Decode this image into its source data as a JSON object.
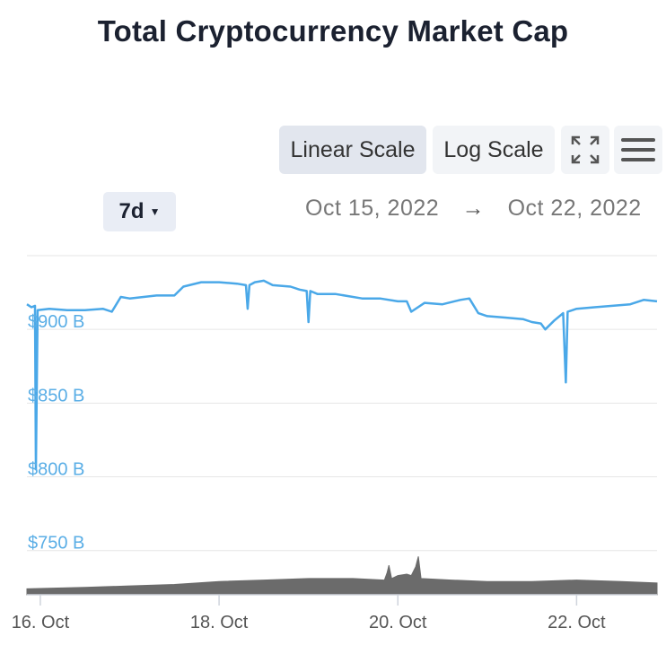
{
  "title": "Total Cryptocurrency Market Cap",
  "toolbar": {
    "linear_label": "Linear Scale",
    "log_label": "Log Scale",
    "fullscreen_icon": "fullscreen-icon",
    "menu_icon": "hamburger-menu-icon"
  },
  "range": {
    "selected": "7d",
    "from": "Oct 15, 2022",
    "arrow": "→",
    "to": "Oct 22, 2022"
  },
  "chart_data": {
    "type": "line",
    "title": "Total Cryptocurrency Market Cap",
    "scale": "linear",
    "x_unit": "day of October 2022",
    "x_range": [
      15.85,
      22.9
    ],
    "ylim": [
      720,
      950
    ],
    "y_ticks": [
      {
        "value": 900,
        "label": "$900 B"
      },
      {
        "value": 850,
        "label": "$850 B"
      },
      {
        "value": 800,
        "label": "$800 B"
      },
      {
        "value": 750,
        "label": "$750 B"
      }
    ],
    "x_ticks": [
      {
        "value": 16,
        "label": "16. Oct"
      },
      {
        "value": 18,
        "label": "18. Oct"
      },
      {
        "value": 20,
        "label": "20. Oct"
      },
      {
        "value": 22,
        "label": "22. Oct"
      }
    ],
    "grid": true,
    "colors": {
      "market_cap": "#4aa8e8",
      "volume": "#6b6b6b",
      "axis_label": "#5aaee6"
    },
    "series": [
      {
        "points": [
          [
            15.85,
            917
          ],
          [
            15.9,
            915
          ],
          [
            15.94,
            916
          ],
          [
            15.95,
            805
          ],
          [
            15.97,
            913
          ],
          [
            16.1,
            914
          ],
          [
            16.3,
            913
          ],
          [
            16.5,
            913
          ],
          [
            16.7,
            914
          ],
          [
            16.8,
            912
          ],
          [
            16.9,
            922
          ],
          [
            17.0,
            921
          ],
          [
            17.3,
            923
          ],
          [
            17.5,
            923
          ],
          [
            17.6,
            929
          ],
          [
            17.8,
            932
          ],
          [
            18.0,
            932
          ],
          [
            18.2,
            931
          ],
          [
            18.3,
            930
          ],
          [
            18.32,
            914
          ],
          [
            18.34,
            930
          ],
          [
            18.4,
            932
          ],
          [
            18.5,
            933
          ],
          [
            18.6,
            930
          ],
          [
            18.8,
            929
          ],
          [
            18.9,
            927
          ],
          [
            18.98,
            926
          ],
          [
            19.0,
            905
          ],
          [
            19.02,
            926
          ],
          [
            19.1,
            924
          ],
          [
            19.3,
            924
          ],
          [
            19.6,
            921
          ],
          [
            19.8,
            921
          ],
          [
            20.0,
            919
          ],
          [
            20.1,
            919
          ],
          [
            20.15,
            912
          ],
          [
            20.3,
            918
          ],
          [
            20.5,
            917
          ],
          [
            20.7,
            920
          ],
          [
            20.8,
            921
          ],
          [
            20.9,
            911
          ],
          [
            21.0,
            909
          ],
          [
            21.2,
            908
          ],
          [
            21.4,
            907
          ],
          [
            21.5,
            905
          ],
          [
            21.6,
            904
          ],
          [
            21.65,
            900
          ],
          [
            21.75,
            906
          ],
          [
            21.85,
            911
          ],
          [
            21.88,
            864
          ],
          [
            21.9,
            912
          ],
          [
            22.0,
            914
          ],
          [
            22.2,
            915
          ],
          [
            22.4,
            916
          ],
          [
            22.6,
            917
          ],
          [
            22.75,
            920
          ],
          [
            22.9,
            919
          ]
        ]
      }
    ],
    "volume": {
      "points": [
        [
          15.85,
          724
        ],
        [
          16.5,
          725
        ],
        [
          17.0,
          726
        ],
        [
          17.5,
          727
        ],
        [
          18.0,
          729
        ],
        [
          18.5,
          730
        ],
        [
          19.0,
          731
        ],
        [
          19.5,
          731
        ],
        [
          19.85,
          730
        ],
        [
          19.88,
          735
        ],
        [
          19.9,
          740
        ],
        [
          19.93,
          731
        ],
        [
          20.0,
          733
        ],
        [
          20.1,
          734
        ],
        [
          20.15,
          733
        ],
        [
          20.2,
          739
        ],
        [
          20.23,
          746
        ],
        [
          20.26,
          731
        ],
        [
          20.6,
          730
        ],
        [
          21.0,
          729
        ],
        [
          21.5,
          729
        ],
        [
          22.0,
          730
        ],
        [
          22.5,
          729
        ],
        [
          22.9,
          728
        ]
      ]
    }
  }
}
